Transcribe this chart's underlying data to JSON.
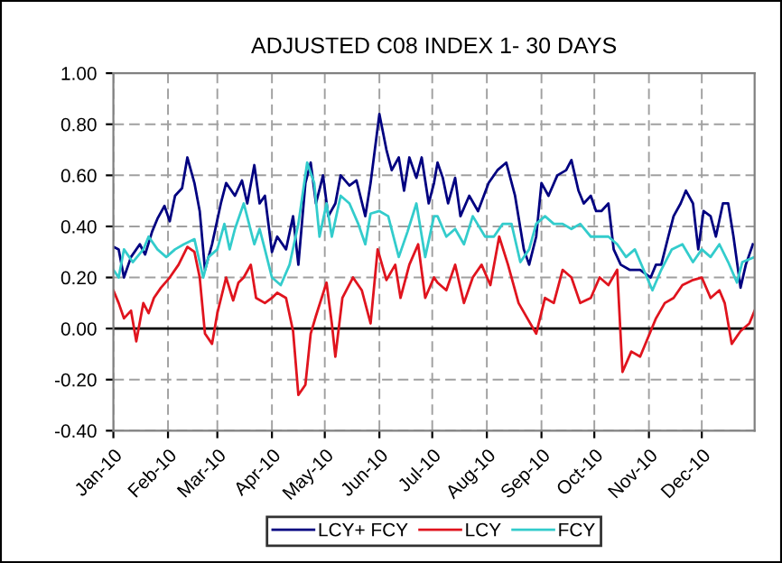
{
  "chart_data": {
    "type": "line",
    "title": "ADJUSTED C08 INDEX 1- 30 DAYS",
    "series": [
      {
        "name": "LCY+ FCY",
        "color": "#000080",
        "x": [
          "2010-01-01",
          "2010-01-04",
          "2010-01-07",
          "2010-01-11",
          "2010-01-16",
          "2010-01-19",
          "2010-01-23",
          "2010-01-26",
          "2010-01-30",
          "2010-02-02",
          "2010-02-05",
          "2010-02-09",
          "2010-02-12",
          "2010-02-16",
          "2010-02-19",
          "2010-02-22",
          "2010-02-26",
          "2010-03-03",
          "2010-03-06",
          "2010-03-11",
          "2010-03-15",
          "2010-03-18",
          "2010-03-22",
          "2010-03-25",
          "2010-03-28",
          "2010-04-01",
          "2010-04-04",
          "2010-04-09",
          "2010-04-13",
          "2010-04-16",
          "2010-04-20",
          "2010-04-23",
          "2010-04-26",
          "2010-04-30",
          "2010-05-03",
          "2010-05-07",
          "2010-05-10",
          "2010-05-15",
          "2010-05-19",
          "2010-05-24",
          "2010-05-27",
          "2010-06-01",
          "2010-06-05",
          "2010-06-08",
          "2010-06-12",
          "2010-06-15",
          "2010-06-18",
          "2010-06-22",
          "2010-06-25",
          "2010-06-29",
          "2010-07-02",
          "2010-07-04",
          "2010-07-07",
          "2010-07-10",
          "2010-07-14",
          "2010-07-17",
          "2010-07-22",
          "2010-07-27",
          "2010-08-02",
          "2010-08-07",
          "2010-08-12",
          "2010-08-17",
          "2010-08-22",
          "2010-08-25",
          "2010-08-29",
          "2010-09-01",
          "2010-09-05",
          "2010-09-10",
          "2010-09-15",
          "2010-09-18",
          "2010-09-22",
          "2010-09-25",
          "2010-09-29",
          "2010-10-02",
          "2010-10-05",
          "2010-10-09",
          "2010-10-12",
          "2010-10-16",
          "2010-10-21",
          "2010-10-27",
          "2010-11-02",
          "2010-11-05",
          "2010-11-08",
          "2010-11-12",
          "2010-11-15",
          "2010-11-19",
          "2010-11-22",
          "2010-11-26",
          "2010-11-29",
          "2010-12-02",
          "2010-12-06",
          "2010-12-09",
          "2010-12-13",
          "2010-12-16",
          "2010-12-19",
          "2010-12-23",
          "2010-12-26",
          "2010-12-30"
        ],
        "values": [
          0.32,
          0.31,
          0.2,
          0.28,
          0.33,
          0.29,
          0.38,
          0.43,
          0.48,
          0.42,
          0.52,
          0.55,
          0.67,
          0.57,
          0.46,
          0.23,
          0.33,
          0.49,
          0.57,
          0.52,
          0.58,
          0.49,
          0.64,
          0.49,
          0.52,
          0.3,
          0.36,
          0.31,
          0.44,
          0.25,
          0.57,
          0.65,
          0.49,
          0.6,
          0.44,
          0.49,
          0.6,
          0.56,
          0.58,
          0.44,
          0.57,
          0.84,
          0.7,
          0.62,
          0.67,
          0.54,
          0.67,
          0.59,
          0.67,
          0.49,
          0.57,
          0.65,
          0.59,
          0.49,
          0.59,
          0.44,
          0.52,
          0.46,
          0.57,
          0.62,
          0.65,
          0.52,
          0.31,
          0.25,
          0.36,
          0.57,
          0.52,
          0.6,
          0.62,
          0.66,
          0.54,
          0.49,
          0.52,
          0.46,
          0.46,
          0.49,
          0.31,
          0.25,
          0.23,
          0.23,
          0.2,
          0.25,
          0.25,
          0.36,
          0.44,
          0.49,
          0.54,
          0.49,
          0.31,
          0.46,
          0.44,
          0.36,
          0.49,
          0.49,
          0.36,
          0.16,
          0.25,
          0.33
        ]
      },
      {
        "name": "LCY",
        "color": "#e0141e",
        "x": [
          "2010-01-01",
          "2010-01-04",
          "2010-01-07",
          "2010-01-11",
          "2010-01-14",
          "2010-01-18",
          "2010-01-21",
          "2010-01-24",
          "2010-01-28",
          "2010-02-02",
          "2010-02-07",
          "2010-02-12",
          "2010-02-16",
          "2010-02-19",
          "2010-02-22",
          "2010-02-26",
          "2010-03-01",
          "2010-03-06",
          "2010-03-10",
          "2010-03-13",
          "2010-03-16",
          "2010-03-20",
          "2010-03-23",
          "2010-03-28",
          "2010-04-01",
          "2010-04-04",
          "2010-04-09",
          "2010-04-13",
          "2010-04-16",
          "2010-04-20",
          "2010-04-23",
          "2010-04-26",
          "2010-05-02",
          "2010-05-05",
          "2010-05-07",
          "2010-05-11",
          "2010-05-17",
          "2010-05-22",
          "2010-05-27",
          "2010-05-31",
          "2010-06-05",
          "2010-06-10",
          "2010-06-13",
          "2010-06-18",
          "2010-06-23",
          "2010-06-27",
          "2010-07-02",
          "2010-07-04",
          "2010-07-09",
          "2010-07-14",
          "2010-07-19",
          "2010-07-24",
          "2010-07-29",
          "2010-08-03",
          "2010-08-08",
          "2010-08-13",
          "2010-08-19",
          "2010-08-24",
          "2010-08-29",
          "2010-09-03",
          "2010-09-08",
          "2010-09-13",
          "2010-09-18",
          "2010-09-23",
          "2010-09-29",
          "2010-10-04",
          "2010-10-09",
          "2010-10-14",
          "2010-10-17",
          "2010-10-22",
          "2010-10-27",
          "2010-11-02",
          "2010-11-05",
          "2010-11-10",
          "2010-11-15",
          "2010-11-20",
          "2010-11-26",
          "2010-12-01",
          "2010-12-06",
          "2010-12-11",
          "2010-12-14",
          "2010-12-18",
          "2010-12-23",
          "2010-12-28",
          "2010-12-31"
        ],
        "values": [
          0.15,
          0.1,
          0.04,
          0.07,
          -0.05,
          0.1,
          0.06,
          0.12,
          0.16,
          0.2,
          0.25,
          0.32,
          0.3,
          0.2,
          -0.02,
          -0.06,
          0.06,
          0.2,
          0.11,
          0.18,
          0.2,
          0.25,
          0.12,
          0.1,
          0.12,
          0.14,
          0.12,
          -0.01,
          -0.26,
          -0.22,
          -0.02,
          0.05,
          0.18,
          0.02,
          -0.11,
          0.12,
          0.2,
          0.15,
          0.02,
          0.31,
          0.19,
          0.25,
          0.12,
          0.25,
          0.33,
          0.12,
          0.2,
          0.18,
          0.15,
          0.25,
          0.1,
          0.2,
          0.25,
          0.17,
          0.36,
          0.25,
          0.1,
          0.04,
          -0.02,
          0.12,
          0.1,
          0.23,
          0.2,
          0.1,
          0.12,
          0.2,
          0.17,
          0.23,
          -0.17,
          -0.09,
          -0.11,
          -0.01,
          0.04,
          0.1,
          0.12,
          0.17,
          0.19,
          0.2,
          0.12,
          0.15,
          0.1,
          -0.06,
          -0.01,
          0.02,
          0.07
        ]
      },
      {
        "name": "FCY",
        "color": "#33cccc",
        "x": [
          "2010-01-01",
          "2010-01-04",
          "2010-01-07",
          "2010-01-12",
          "2010-01-18",
          "2010-01-21",
          "2010-01-26",
          "2010-01-31",
          "2010-02-05",
          "2010-02-10",
          "2010-02-16",
          "2010-02-21",
          "2010-02-24",
          "2010-03-01",
          "2010-03-05",
          "2010-03-08",
          "2010-03-11",
          "2010-03-16",
          "2010-03-22",
          "2010-03-25",
          "2010-03-28",
          "2010-04-01",
          "2010-04-06",
          "2010-04-11",
          "2010-04-16",
          "2010-04-21",
          "2010-04-25",
          "2010-04-28",
          "2010-05-02",
          "2010-05-05",
          "2010-05-10",
          "2010-05-15",
          "2010-05-20",
          "2010-05-24",
          "2010-05-27",
          "2010-06-01",
          "2010-06-06",
          "2010-06-12",
          "2010-06-17",
          "2010-06-22",
          "2010-06-27",
          "2010-07-02",
          "2010-07-04",
          "2010-07-09",
          "2010-07-14",
          "2010-07-19",
          "2010-07-24",
          "2010-07-31",
          "2010-08-05",
          "2010-08-10",
          "2010-08-15",
          "2010-08-20",
          "2010-08-25",
          "2010-08-29",
          "2010-09-03",
          "2010-09-08",
          "2010-09-13",
          "2010-09-18",
          "2010-09-23",
          "2010-09-29",
          "2010-10-04",
          "2010-10-09",
          "2010-10-14",
          "2010-10-19",
          "2010-10-24",
          "2010-10-29",
          "2010-11-03",
          "2010-11-08",
          "2010-11-14",
          "2010-11-20",
          "2010-11-26",
          "2010-12-01",
          "2010-12-06",
          "2010-12-11",
          "2010-12-16",
          "2010-12-21",
          "2010-12-24",
          "2010-12-31"
        ],
        "values": [
          0.23,
          0.2,
          0.31,
          0.26,
          0.31,
          0.36,
          0.31,
          0.28,
          0.31,
          0.33,
          0.35,
          0.2,
          0.28,
          0.31,
          0.41,
          0.31,
          0.39,
          0.49,
          0.33,
          0.39,
          0.31,
          0.2,
          0.17,
          0.25,
          0.41,
          0.65,
          0.57,
          0.36,
          0.49,
          0.36,
          0.52,
          0.49,
          0.41,
          0.33,
          0.45,
          0.46,
          0.44,
          0.28,
          0.38,
          0.49,
          0.28,
          0.44,
          0.44,
          0.36,
          0.39,
          0.33,
          0.44,
          0.36,
          0.36,
          0.41,
          0.41,
          0.26,
          0.31,
          0.41,
          0.44,
          0.41,
          0.41,
          0.39,
          0.41,
          0.36,
          0.36,
          0.36,
          0.33,
          0.28,
          0.31,
          0.23,
          0.15,
          0.23,
          0.31,
          0.33,
          0.26,
          0.31,
          0.28,
          0.33,
          0.26,
          0.18,
          0.26,
          0.28
        ]
      }
    ],
    "xlim": [
      "2010-01-01",
      "2010-12-31"
    ],
    "xticks": [
      {
        "value": "2010-01-01",
        "label": "Jan-10"
      },
      {
        "value": "2010-02-01",
        "label": "Feb-10"
      },
      {
        "value": "2010-03-01",
        "label": "Mar-10"
      },
      {
        "value": "2010-04-01",
        "label": "Apr-10"
      },
      {
        "value": "2010-05-01",
        "label": "May-10"
      },
      {
        "value": "2010-06-01",
        "label": "Jun-10"
      },
      {
        "value": "2010-07-01",
        "label": "Jul-10"
      },
      {
        "value": "2010-08-01",
        "label": "Aug-10"
      },
      {
        "value": "2010-09-01",
        "label": "Sep-10"
      },
      {
        "value": "2010-10-01",
        "label": "Oct-10"
      },
      {
        "value": "2010-11-01",
        "label": "Nov-10"
      },
      {
        "value": "2010-12-01",
        "label": "Dec-10"
      }
    ],
    "ylim": [
      -0.4,
      1.0
    ],
    "yticks": [
      {
        "value": -0.4,
        "label": "-0.40"
      },
      {
        "value": -0.2,
        "label": "-0.20"
      },
      {
        "value": 0,
        "label": "0.00"
      },
      {
        "value": 0.2,
        "label": "0.20"
      },
      {
        "value": 0.4,
        "label": "0.40"
      },
      {
        "value": 0.6,
        "label": "0.60"
      },
      {
        "value": 0.8,
        "label": "0.80"
      },
      {
        "value": 1.0,
        "label": "1.00"
      }
    ],
    "ref_lines": [
      {
        "axis": "y",
        "value": 0,
        "color": "#000000"
      }
    ],
    "grid": true,
    "legend": "bottom",
    "marker": "none",
    "line_style": "solid"
  }
}
